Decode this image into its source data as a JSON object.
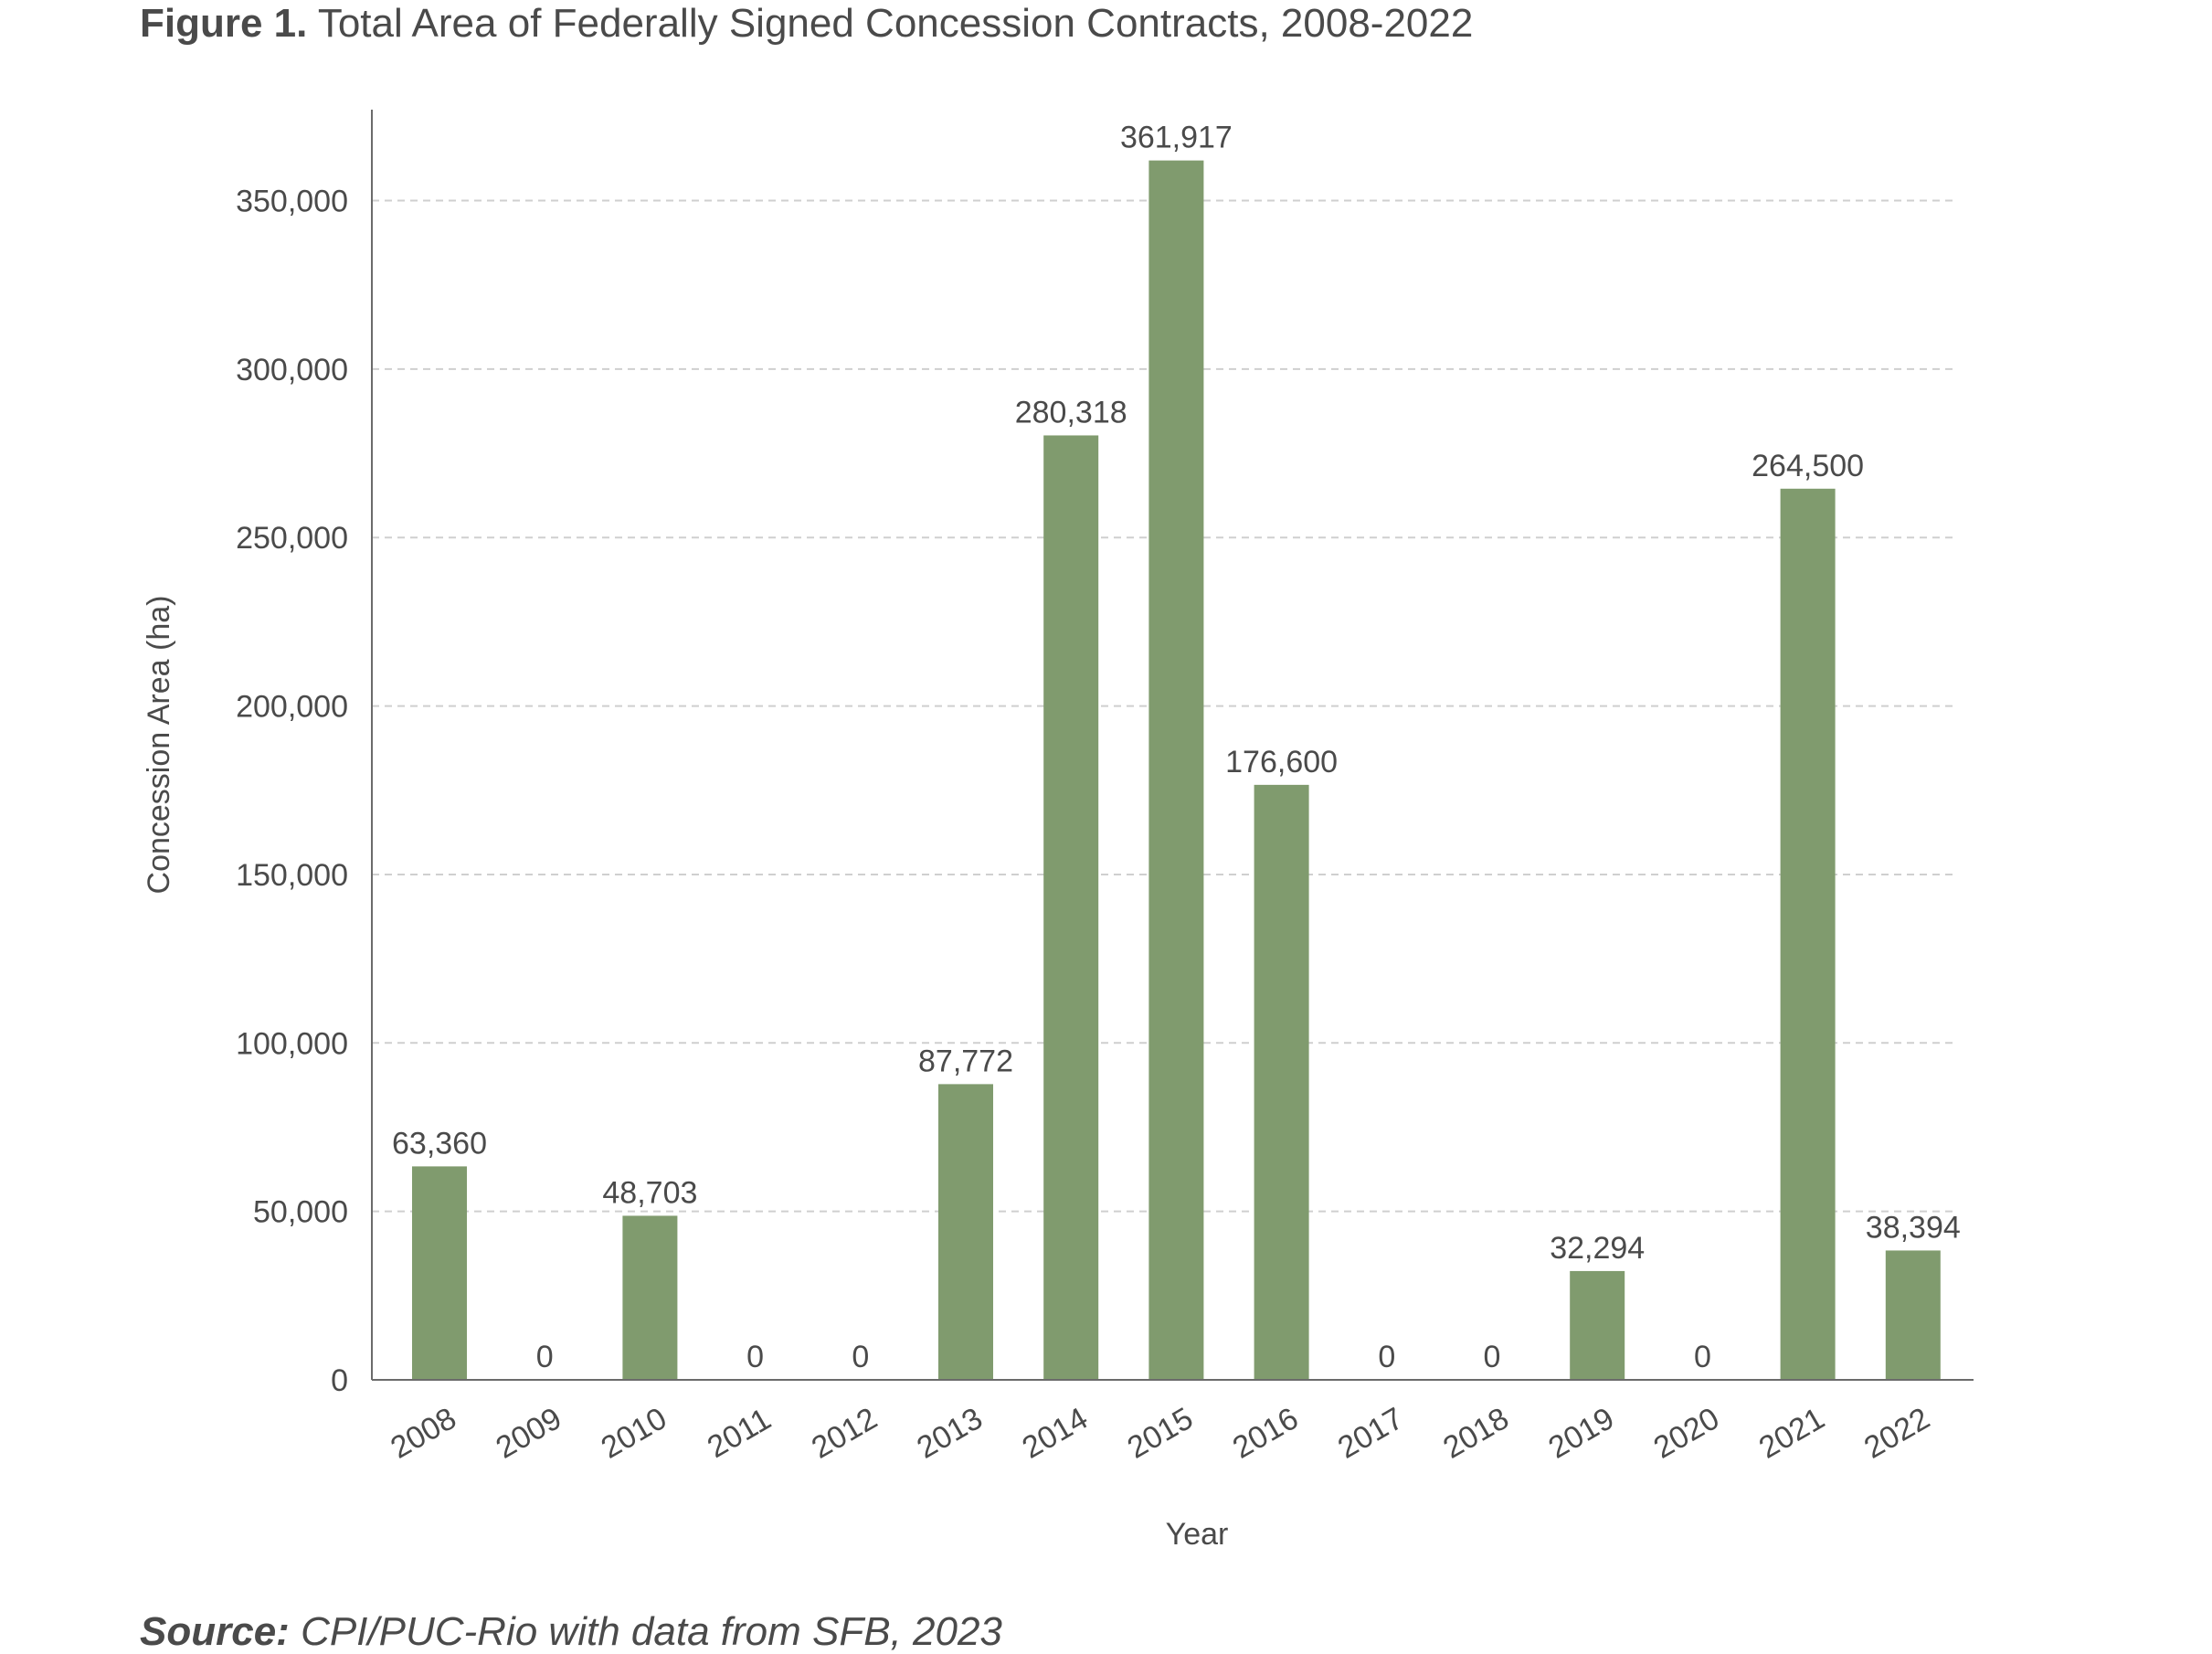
{
  "figure": {
    "label": "Figure 1.",
    "title": "Total Area of Federally Signed Concession Contracts, 2008-2022"
  },
  "source": {
    "label": "Source:",
    "text": "CPI/PUC-Rio with data from SFB, 2023"
  },
  "colors": {
    "bar": "#809b6e",
    "axis": "#6b6b6b",
    "grid": "#cfcfcf",
    "text": "#4a4a4a"
  },
  "chart_data": {
    "type": "bar",
    "title": "Total Area of Federally Signed Concession Contracts, 2008-2022",
    "xlabel": "Year",
    "ylabel": "Concession Area (ha)",
    "categories": [
      "2008",
      "2009",
      "2010",
      "2011",
      "2012",
      "2013",
      "2014",
      "2015",
      "2016",
      "2017",
      "2018",
      "2019",
      "2020",
      "2021",
      "2022"
    ],
    "values": [
      63360,
      0,
      48703,
      0,
      0,
      87772,
      280318,
      361917,
      176600,
      0,
      0,
      32294,
      0,
      264500,
      38394
    ],
    "value_labels": [
      "63,360",
      "0",
      "48,703",
      "0",
      "0",
      "87,772",
      "280,318",
      "361,917",
      "176,600",
      "0",
      "0",
      "32,294",
      "0",
      "264,500",
      "38,394"
    ],
    "ylim": [
      0,
      377000
    ],
    "yticks": [
      0,
      50000,
      100000,
      150000,
      200000,
      250000,
      300000,
      350000
    ],
    "ytick_labels": [
      "0",
      "50,000",
      "100,000",
      "150,000",
      "200,000",
      "250,000",
      "300,000",
      "350,000"
    ],
    "grid": "horizontal dashed",
    "legend": "none"
  }
}
